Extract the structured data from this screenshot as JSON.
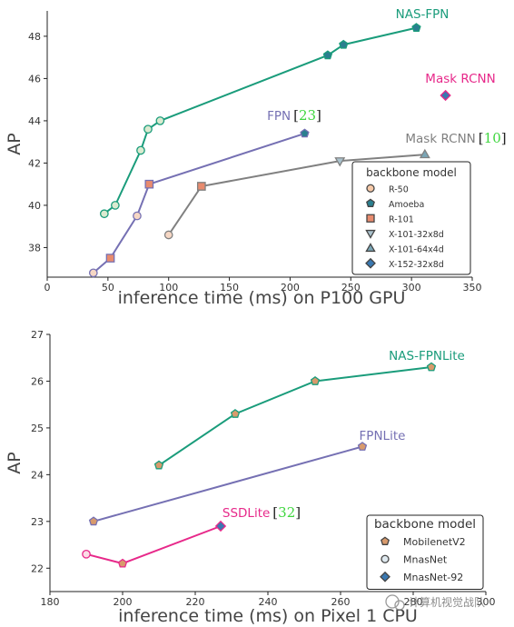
{
  "chart_data": [
    {
      "type": "line",
      "xlabel": "inference time (ms) on P100 GPU",
      "ylabel": "AP",
      "xlim": [
        0,
        350
      ],
      "ylim": [
        36.6,
        49.2
      ],
      "xticks": [
        0,
        50,
        100,
        150,
        200,
        250,
        300,
        350
      ],
      "yticks": [
        38,
        40,
        42,
        44,
        46,
        48
      ],
      "grid": false,
      "legend": {
        "title": "backbone model",
        "placement": "lower-right",
        "entries": [
          {
            "label": "R-50",
            "marker": "circle",
            "color": "#f6c9a8"
          },
          {
            "label": "Amoeba",
            "marker": "pentagon",
            "color": "#2a7f8f"
          },
          {
            "label": "R-101",
            "marker": "square",
            "color": "#e88b6e"
          },
          {
            "label": "X-101-32x8d",
            "marker": "triangle-down",
            "color": "#a9c1cc"
          },
          {
            "label": "X-101-64x4d",
            "marker": "triangle-up",
            "color": "#7aa6b6"
          },
          {
            "label": "X-152-32x8d",
            "marker": "diamond",
            "color": "#3a78b0"
          }
        ]
      },
      "series": [
        {
          "name": "NAS-FPN",
          "color": "#1a9c7b",
          "cite": "",
          "points": [
            {
              "x": 47,
              "y": 39.6,
              "marker": "circle",
              "fill": "#dbead0"
            },
            {
              "x": 56,
              "y": 40.0,
              "marker": "circle",
              "fill": "#dbead0"
            },
            {
              "x": 77,
              "y": 42.6,
              "marker": "circle",
              "fill": "#dbead0"
            },
            {
              "x": 83,
              "y": 43.6,
              "marker": "circle",
              "fill": "#dbead0"
            },
            {
              "x": 93,
              "y": 44.0,
              "marker": "circle",
              "fill": "#dbead0"
            },
            {
              "x": 231,
              "y": 47.1,
              "marker": "pentagon",
              "fill": "#2a7f8f"
            },
            {
              "x": 244,
              "y": 47.6,
              "marker": "pentagon",
              "fill": "#2a7f8f"
            },
            {
              "x": 304,
              "y": 48.4,
              "marker": "pentagon",
              "fill": "#2a7f8f"
            }
          ]
        },
        {
          "name": "FPN",
          "color": "#7570b3",
          "cite": "23",
          "points": [
            {
              "x": 38,
              "y": 36.8,
              "marker": "circle",
              "fill": "#f6d7c4"
            },
            {
              "x": 52,
              "y": 37.5,
              "marker": "square",
              "fill": "#e88b6e"
            },
            {
              "x": 74,
              "y": 39.5,
              "marker": "circle",
              "fill": "#f6d7c4"
            },
            {
              "x": 84,
              "y": 41.0,
              "marker": "square",
              "fill": "#e88b6e"
            },
            {
              "x": 212,
              "y": 43.4,
              "marker": "pentagon",
              "fill": "#2a7f8f"
            }
          ]
        },
        {
          "name": "Mask RCNN",
          "color": "#808080",
          "cite": "10",
          "points": [
            {
              "x": 100,
              "y": 38.6,
              "marker": "circle",
              "fill": "#f6d7c4"
            },
            {
              "x": 127,
              "y": 40.9,
              "marker": "square",
              "fill": "#e88b6e"
            },
            {
              "x": 241,
              "y": 42.1,
              "marker": "triangle-down",
              "fill": "#a9c1cc"
            },
            {
              "x": 311,
              "y": 42.4,
              "marker": "triangle-up",
              "fill": "#7aa6b6"
            }
          ]
        },
        {
          "name": "Mask RCNN",
          "color": "#e7298a",
          "cite": "",
          "points": [
            {
              "x": 328,
              "y": 45.2,
              "marker": "diamond",
              "fill": "#3a78b0"
            }
          ]
        }
      ]
    },
    {
      "type": "line",
      "xlabel": "inference time (ms) on Pixel 1 CPU",
      "ylabel": "AP",
      "xlim": [
        180,
        300
      ],
      "ylim": [
        21.5,
        27.0
      ],
      "xticks": [
        180,
        200,
        220,
        240,
        260,
        280,
        300
      ],
      "yticks": [
        22,
        23,
        24,
        25,
        26,
        27
      ],
      "grid": false,
      "legend": {
        "title": "backbone model",
        "placement": "lower-right",
        "entries": [
          {
            "label": "MobilenetV2",
            "marker": "pentagon",
            "color": "#d89a6c"
          },
          {
            "label": "MnasNet",
            "marker": "circle",
            "color": "#dfe9ef"
          },
          {
            "label": "MnasNet-92",
            "marker": "diamond",
            "color": "#3a78b0"
          }
        ]
      },
      "series": [
        {
          "name": "NAS-FPNLite",
          "color": "#1a9c7b",
          "cite": "",
          "points": [
            {
              "x": 210,
              "y": 24.2,
              "marker": "pentagon",
              "fill": "#d89a6c"
            },
            {
              "x": 231,
              "y": 25.3,
              "marker": "pentagon",
              "fill": "#d89a6c"
            },
            {
              "x": 253,
              "y": 26.0,
              "marker": "pentagon",
              "fill": "#d89a6c"
            },
            {
              "x": 285,
              "y": 26.3,
              "marker": "pentagon",
              "fill": "#d89a6c"
            }
          ]
        },
        {
          "name": "FPNLite",
          "color": "#7570b3",
          "cite": "",
          "points": [
            {
              "x": 192,
              "y": 23.0,
              "marker": "pentagon",
              "fill": "#d89a6c"
            },
            {
              "x": 266,
              "y": 24.6,
              "marker": "pentagon",
              "fill": "#d89a6c"
            }
          ]
        },
        {
          "name": "SSDLite",
          "color": "#e7298a",
          "cite": "32",
          "points": [
            {
              "x": 190,
              "y": 22.3,
              "marker": "circle",
              "fill": "#fbdde6"
            },
            {
              "x": 200,
              "y": 22.1,
              "marker": "pentagon",
              "fill": "#d89a6c"
            },
            {
              "x": 227,
              "y": 22.9,
              "marker": "diamond",
              "fill": "#3a78b0"
            }
          ]
        }
      ]
    }
  ],
  "watermark": "计算机视觉战队"
}
